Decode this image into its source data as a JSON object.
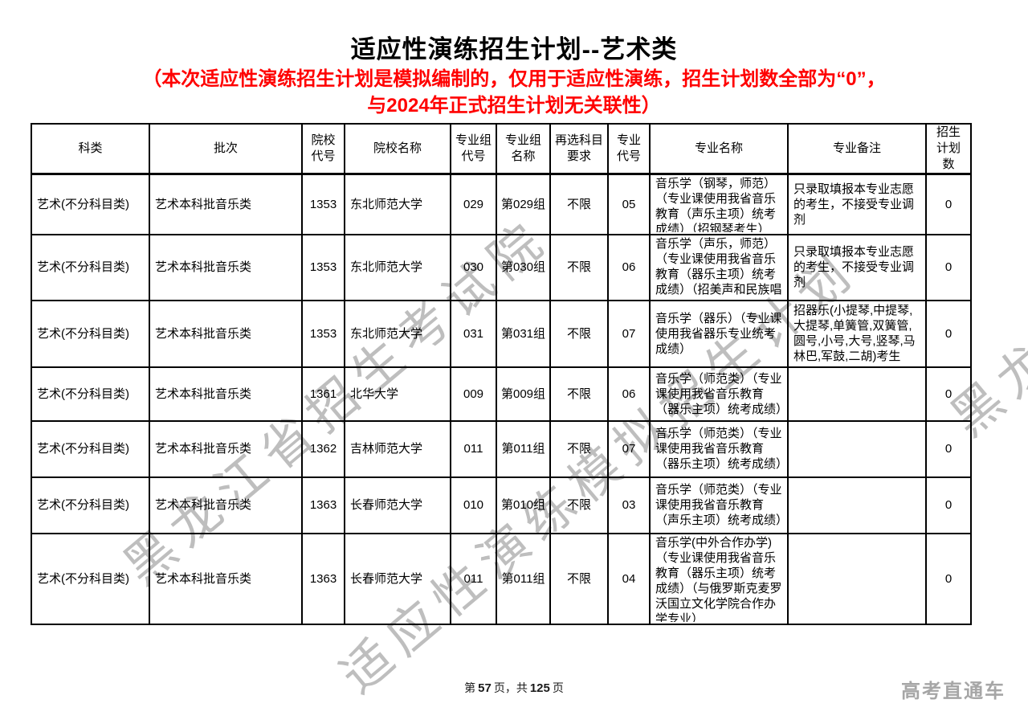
{
  "page": {
    "title": "适应性演练招生计划--艺术类",
    "notice_line1": "（本次适应性演练招生计划是模拟编制的，仅用于适应性演练，招生计划数全部为“0”，",
    "notice_line2": "与2024年正式招生计划无关联性）",
    "watermark": {
      "line1": "黑龙江省招生考试院",
      "line2": "适应性演练模拟招生计划"
    }
  },
  "table": {
    "headers": [
      "科类",
      "批次",
      "院校代号",
      "院校名称",
      "专业组代号",
      "专业组名称",
      "再选科目要求",
      "专业代号",
      "专业名称",
      "专业备注",
      "招生计划数"
    ],
    "rows": [
      [
        "艺术(不分科目类)",
        "艺术本科批音乐类",
        "1353",
        "东北师范大学",
        "029",
        "第029组",
        "不限",
        "05",
        "音乐学（钢琴，师范）（专业课使用我省音乐教育（声乐主项）统考成绩）（招钢琴考生）",
        "只录取填报本专业志愿的考生，不接受专业调剂",
        "0"
      ],
      [
        "艺术(不分科目类)",
        "艺术本科批音乐类",
        "1353",
        "东北师范大学",
        "030",
        "第030组",
        "不限",
        "06",
        "音乐学（声乐，师范）（专业课使用我省音乐教育（器乐主项）统考成绩）（招美声和民族唱法考生）",
        "只录取填报本专业志愿的考生，不接受专业调剂",
        "0"
      ],
      [
        "艺术(不分科目类)",
        "艺术本科批音乐类",
        "1353",
        "东北师范大学",
        "031",
        "第031组",
        "不限",
        "07",
        "音乐学（器乐）（专业课使用我省器乐专业统考成绩）",
        "招器乐(小提琴,中提琴,大提琴,单簧管,双簧管,圆号,小号,大号,竖琴,马林巴,军鼓,二胡)考生",
        "0"
      ],
      [
        "艺术(不分科目类)",
        "艺术本科批音乐类",
        "1361",
        "北华大学",
        "009",
        "第009组",
        "不限",
        "06",
        "音乐学（师范类）（专业课使用我省音乐教育（器乐主项）统考成绩）",
        "",
        "0"
      ],
      [
        "艺术(不分科目类)",
        "艺术本科批音乐类",
        "1362",
        "吉林师范大学",
        "011",
        "第011组",
        "不限",
        "07",
        "音乐学（师范类）（专业课使用我省音乐教育（器乐主项）统考成绩）",
        "",
        "0"
      ],
      [
        "艺术(不分科目类)",
        "艺术本科批音乐类",
        "1363",
        "长春师范大学",
        "010",
        "第010组",
        "不限",
        "03",
        "音乐学（师范类）（专业课使用我省音乐教育（声乐主项）统考成绩）",
        "",
        "0"
      ],
      [
        "艺术(不分科目类)",
        "艺术本科批音乐类",
        "1363",
        "长春师范大学",
        "011",
        "第011组",
        "不限",
        "04",
        "音乐学(中外合作办学)（专业课使用我省音乐教育（器乐主项）统考成绩）（与俄罗斯克麦罗沃国立文化学院合作办学专业）",
        "",
        "0"
      ]
    ]
  },
  "footer": {
    "prefix": "第",
    "current": "57",
    "mid": "页，共",
    "total": "125",
    "suffix": "页",
    "brand_label": "高考直通车"
  }
}
